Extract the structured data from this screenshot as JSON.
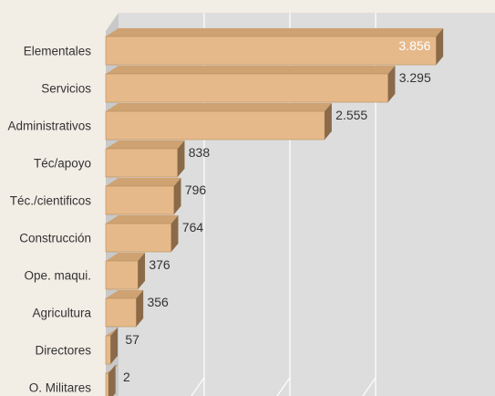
{
  "chart_data": {
    "type": "bar",
    "orientation": "horizontal",
    "style": "3d",
    "categories": [
      "Elementales",
      "Servicios",
      "Administrativos",
      "Téc/apoyo",
      "Téc./cientificos",
      "Construcción",
      "Ope. maqui.",
      "Agricultura",
      "Directores",
      "O. Militares"
    ],
    "values": [
      3856,
      3295,
      2555,
      838,
      796,
      764,
      376,
      356,
      57,
      2
    ],
    "value_labels": [
      "3.856",
      "3.295",
      "2.555",
      "838",
      "796",
      "764",
      "376",
      "356",
      "57",
      "2"
    ],
    "title": "",
    "xlabel": "",
    "ylabel": "",
    "xlim": [
      0,
      4000
    ],
    "grid": true,
    "legend": "none",
    "colors": {
      "bar_front": "#e6b98a",
      "bar_top": "#cfa272",
      "bar_side": "#8a6a48",
      "bar_edge": "#b98c5c",
      "wall": "#dddddd",
      "wall_top": "#e9e9e9",
      "floor": "#c9c9c9",
      "gridline": "#ffffff",
      "background": "#f2ede5"
    }
  }
}
